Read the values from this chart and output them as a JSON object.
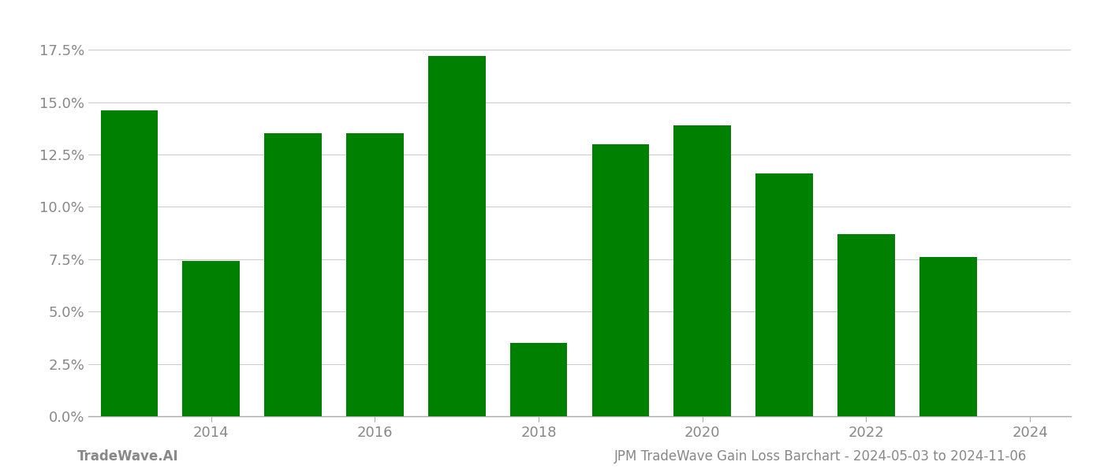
{
  "years": [
    2013,
    2014,
    2015,
    2016,
    2017,
    2018,
    2019,
    2020,
    2021,
    2022,
    2023
  ],
  "values": [
    0.146,
    0.074,
    0.135,
    0.135,
    0.172,
    0.035,
    0.13,
    0.139,
    0.116,
    0.087,
    0.076
  ],
  "bar_color": "#008000",
  "background_color": "#ffffff",
  "grid_color": "#cccccc",
  "axis_label_color": "#aaaaaa",
  "tick_label_color": "#888888",
  "ylim": [
    0,
    0.1875
  ],
  "yticks": [
    0.0,
    0.025,
    0.05,
    0.075,
    0.1,
    0.125,
    0.15,
    0.175
  ],
  "xtick_labels": [
    "2014",
    "2016",
    "2018",
    "2020",
    "2022",
    "2024"
  ],
  "xtick_positions": [
    2014,
    2016,
    2018,
    2020,
    2022,
    2024
  ],
  "xlim": [
    2012.5,
    2024.5
  ],
  "footer_left": "TradeWave.AI",
  "footer_right": "JPM TradeWave Gain Loss Barchart - 2024-05-03 to 2024-11-06",
  "footer_color": "#888888",
  "footer_fontsize": 12,
  "bar_width": 0.7
}
